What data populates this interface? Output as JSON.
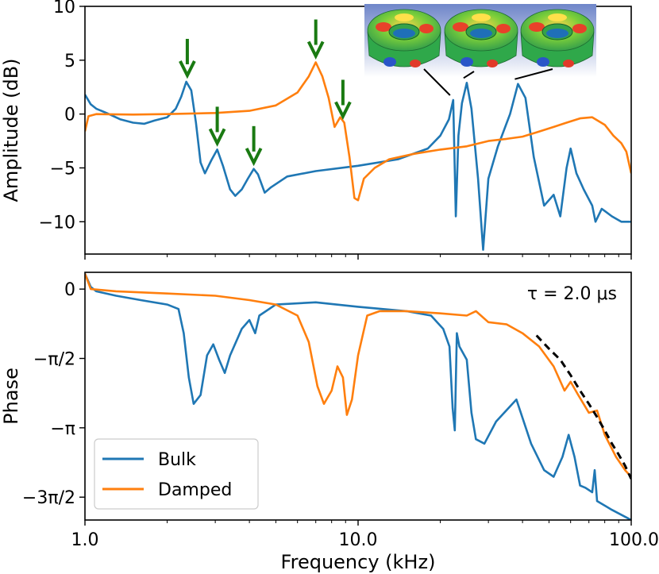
{
  "chart_data": [
    {
      "type": "line",
      "panel": "amplitude",
      "ylabel": "Amplitude (dB)",
      "x_scale": "log",
      "xlim": [
        1.0,
        100.0
      ],
      "ylim": [
        -13,
        10
      ],
      "yticks": [
        10,
        5,
        0,
        -5,
        -10
      ],
      "ytick_labels": [
        "10",
        "5",
        "0",
        "−5",
        "−10"
      ],
      "series": [
        {
          "name": "Bulk",
          "color": "#1f77b4",
          "points": [
            [
              1.0,
              1.8
            ],
            [
              1.05,
              0.9
            ],
            [
              1.1,
              0.5
            ],
            [
              1.2,
              0.1
            ],
            [
              1.35,
              -0.5
            ],
            [
              1.5,
              -0.8
            ],
            [
              1.65,
              -0.9
            ],
            [
              1.8,
              -0.6
            ],
            [
              2.0,
              -0.3
            ],
            [
              2.15,
              0.5
            ],
            [
              2.25,
              1.6
            ],
            [
              2.35,
              3.0
            ],
            [
              2.45,
              2.2
            ],
            [
              2.55,
              -0.8
            ],
            [
              2.65,
              -4.5
            ],
            [
              2.75,
              -5.5
            ],
            [
              2.9,
              -4.3
            ],
            [
              3.05,
              -3.3
            ],
            [
              3.2,
              -4.8
            ],
            [
              3.4,
              -7.0
            ],
            [
              3.55,
              -7.6
            ],
            [
              3.75,
              -7.0
            ],
            [
              3.95,
              -6.0
            ],
            [
              4.15,
              -5.1
            ],
            [
              4.3,
              -5.6
            ],
            [
              4.55,
              -7.3
            ],
            [
              4.8,
              -6.8
            ],
            [
              5.5,
              -5.8
            ],
            [
              7.0,
              -5.3
            ],
            [
              10.0,
              -4.8
            ],
            [
              14.0,
              -4.2
            ],
            [
              18.0,
              -3.2
            ],
            [
              20.0,
              -2.0
            ],
            [
              21.5,
              -0.5
            ],
            [
              22.3,
              1.3
            ],
            [
              22.8,
              -9.5
            ],
            [
              23.3,
              -2.0
            ],
            [
              24.0,
              1.0
            ],
            [
              25.0,
              2.9
            ],
            [
              26.0,
              0.5
            ],
            [
              27.5,
              -6.0
            ],
            [
              28.7,
              -12.6
            ],
            [
              30.0,
              -6.0
            ],
            [
              32.5,
              -3.0
            ],
            [
              36.0,
              0.0
            ],
            [
              38.5,
              2.8
            ],
            [
              41.0,
              1.5
            ],
            [
              44.0,
              -4.0
            ],
            [
              48.0,
              -8.5
            ],
            [
              52.0,
              -7.5
            ],
            [
              55.0,
              -9.5
            ],
            [
              58.0,
              -5.0
            ],
            [
              60.0,
              -3.2
            ],
            [
              63.0,
              -5.5
            ],
            [
              67.0,
              -7.0
            ],
            [
              72.0,
              -8.5
            ],
            [
              74.0,
              -10.0
            ],
            [
              78.0,
              -8.8
            ],
            [
              85.0,
              -9.5
            ],
            [
              92.0,
              -10.0
            ],
            [
              100.0,
              -10.0
            ]
          ],
          "peak_arrows_x": [
            2.37,
            3.05,
            4.15
          ]
        },
        {
          "name": "Damped",
          "color": "#ff7f0e",
          "points": [
            [
              1.0,
              -1.6
            ],
            [
              1.03,
              -0.2
            ],
            [
              1.1,
              0.0
            ],
            [
              1.5,
              -0.05
            ],
            [
              2.0,
              0.0
            ],
            [
              3.0,
              0.1
            ],
            [
              4.0,
              0.3
            ],
            [
              5.0,
              0.8
            ],
            [
              6.0,
              2.0
            ],
            [
              6.6,
              3.5
            ],
            [
              7.0,
              4.8
            ],
            [
              7.4,
              3.5
            ],
            [
              7.8,
              1.5
            ],
            [
              8.2,
              -1.2
            ],
            [
              8.6,
              -0.3
            ],
            [
              8.9,
              -0.8
            ],
            [
              9.3,
              -4.0
            ],
            [
              9.7,
              -7.8
            ],
            [
              10.0,
              -8.0
            ],
            [
              10.5,
              -6.0
            ],
            [
              11.5,
              -5.0
            ],
            [
              13.0,
              -4.2
            ],
            [
              16.0,
              -3.7
            ],
            [
              20.0,
              -3.3
            ],
            [
              25.0,
              -3.0
            ],
            [
              30.0,
              -2.5
            ],
            [
              35.0,
              -2.3
            ],
            [
              40.0,
              -2.1
            ],
            [
              45.0,
              -1.7
            ],
            [
              52.0,
              -1.2
            ],
            [
              58.0,
              -0.8
            ],
            [
              65.0,
              -0.4
            ],
            [
              72.0,
              -0.3
            ],
            [
              80.0,
              -1.0
            ],
            [
              86.0,
              -2.0
            ],
            [
              92.0,
              -2.7
            ],
            [
              96.0,
              -3.5
            ],
            [
              100.0,
              -5.5
            ]
          ],
          "peak_arrows_x": [
            7.0,
            8.8
          ]
        }
      ],
      "arrow_color": "#1a7a12",
      "inset_legend": "none"
    },
    {
      "type": "line",
      "panel": "phase",
      "ylabel": "Phase",
      "xlabel": "Frequency (kHz)",
      "x_scale": "log",
      "xlim": [
        1.0,
        100.0
      ],
      "ylim": [
        -5.23,
        0.38
      ],
      "yticks": [
        0,
        -1.5708,
        -3.1416,
        -4.7124
      ],
      "ytick_labels": [
        "0",
        "−π/2",
        "−π",
        "−3π/2"
      ],
      "xtick_labels": [
        "1.0",
        "10.0",
        "100.0"
      ],
      "xticks": [
        1.0,
        10.0,
        100.0
      ],
      "legend_position": "bottom-left",
      "annotation": "τ =  2.0 μs",
      "series": [
        {
          "name": "Bulk",
          "color": "#1f77b4",
          "points": [
            [
              1.0,
              0.35
            ],
            [
              1.05,
              0.05
            ],
            [
              1.1,
              -0.05
            ],
            [
              1.3,
              -0.15
            ],
            [
              1.6,
              -0.25
            ],
            [
              2.0,
              -0.35
            ],
            [
              2.2,
              -0.45
            ],
            [
              2.3,
              -1.0
            ],
            [
              2.4,
              -2.0
            ],
            [
              2.5,
              -2.6
            ],
            [
              2.65,
              -2.4
            ],
            [
              2.8,
              -1.5
            ],
            [
              2.95,
              -1.25
            ],
            [
              3.1,
              -1.6
            ],
            [
              3.25,
              -1.9
            ],
            [
              3.4,
              -1.5
            ],
            [
              3.75,
              -0.9
            ],
            [
              4.0,
              -0.7
            ],
            [
              4.2,
              -1.0
            ],
            [
              4.35,
              -0.6
            ],
            [
              5.0,
              -0.35
            ],
            [
              7.0,
              -0.3
            ],
            [
              10.0,
              -0.4
            ],
            [
              15.0,
              -0.5
            ],
            [
              18.5,
              -0.6
            ],
            [
              20.5,
              -0.9
            ],
            [
              21.6,
              -1.3
            ],
            [
              22.2,
              -2.7
            ],
            [
              22.6,
              -3.2
            ],
            [
              23.0,
              -1.0
            ],
            [
              23.5,
              -1.3
            ],
            [
              25.0,
              -1.6
            ],
            [
              26.0,
              -2.8
            ],
            [
              27.0,
              -3.4
            ],
            [
              29.0,
              -3.5
            ],
            [
              32.0,
              -3.0
            ],
            [
              38.0,
              -2.5
            ],
            [
              43.0,
              -3.5
            ],
            [
              48.0,
              -4.1
            ],
            [
              52.0,
              -4.25
            ],
            [
              56.0,
              -3.8
            ],
            [
              59.0,
              -3.3
            ],
            [
              62.0,
              -3.8
            ],
            [
              65.0,
              -4.45
            ],
            [
              68.0,
              -4.5
            ],
            [
              72.0,
              -4.6
            ],
            [
              73.5,
              -4.1
            ],
            [
              75.0,
              -4.8
            ],
            [
              85.0,
              -5.0
            ],
            [
              100.0,
              -5.23
            ]
          ]
        },
        {
          "name": "Damped",
          "color": "#ff7f0e",
          "points": [
            [
              1.0,
              0.35
            ],
            [
              1.05,
              0.0
            ],
            [
              1.3,
              -0.05
            ],
            [
              2.0,
              -0.1
            ],
            [
              3.0,
              -0.15
            ],
            [
              4.0,
              -0.25
            ],
            [
              5.0,
              -0.35
            ],
            [
              6.0,
              -0.6
            ],
            [
              6.6,
              -1.2
            ],
            [
              7.1,
              -2.2
            ],
            [
              7.5,
              -2.6
            ],
            [
              8.0,
              -2.3
            ],
            [
              8.4,
              -1.75
            ],
            [
              8.8,
              -2.0
            ],
            [
              9.1,
              -2.85
            ],
            [
              9.5,
              -2.5
            ],
            [
              10.0,
              -1.5
            ],
            [
              10.8,
              -0.6
            ],
            [
              12.0,
              -0.5
            ],
            [
              15.0,
              -0.5
            ],
            [
              20.0,
              -0.55
            ],
            [
              25.0,
              -0.6
            ],
            [
              27.0,
              -0.5
            ],
            [
              30.0,
              -0.75
            ],
            [
              35.0,
              -0.8
            ],
            [
              40.0,
              -1.0
            ],
            [
              46.0,
              -1.3
            ],
            [
              52.0,
              -1.75
            ],
            [
              57.0,
              -2.3
            ],
            [
              60.0,
              -2.1
            ],
            [
              64.0,
              -2.4
            ],
            [
              70.0,
              -2.8
            ],
            [
              75.0,
              -2.75
            ],
            [
              80.0,
              -3.3
            ],
            [
              88.0,
              -3.8
            ],
            [
              95.0,
              -4.1
            ],
            [
              100.0,
              -4.25
            ]
          ]
        },
        {
          "name": "",
          "color": "#000000",
          "dashed": true,
          "model_tau_us": 2.0,
          "points": [
            [
              45.0,
              -1.05
            ],
            [
              50.0,
              -1.35
            ],
            [
              55.0,
              -1.6
            ],
            [
              60.0,
              -1.95
            ],
            [
              65.0,
              -2.3
            ],
            [
              70.0,
              -2.6
            ],
            [
              75.0,
              -2.9
            ],
            [
              80.0,
              -3.2
            ],
            [
              85.0,
              -3.5
            ],
            [
              90.0,
              -3.75
            ],
            [
              95.0,
              -4.0
            ],
            [
              100.0,
              -4.3
            ]
          ]
        }
      ]
    }
  ],
  "inset": {
    "description_icon": "fem-mode-shapes-image",
    "mode_pointer_x": [
      22.3,
      25.0,
      38.5
    ]
  }
}
